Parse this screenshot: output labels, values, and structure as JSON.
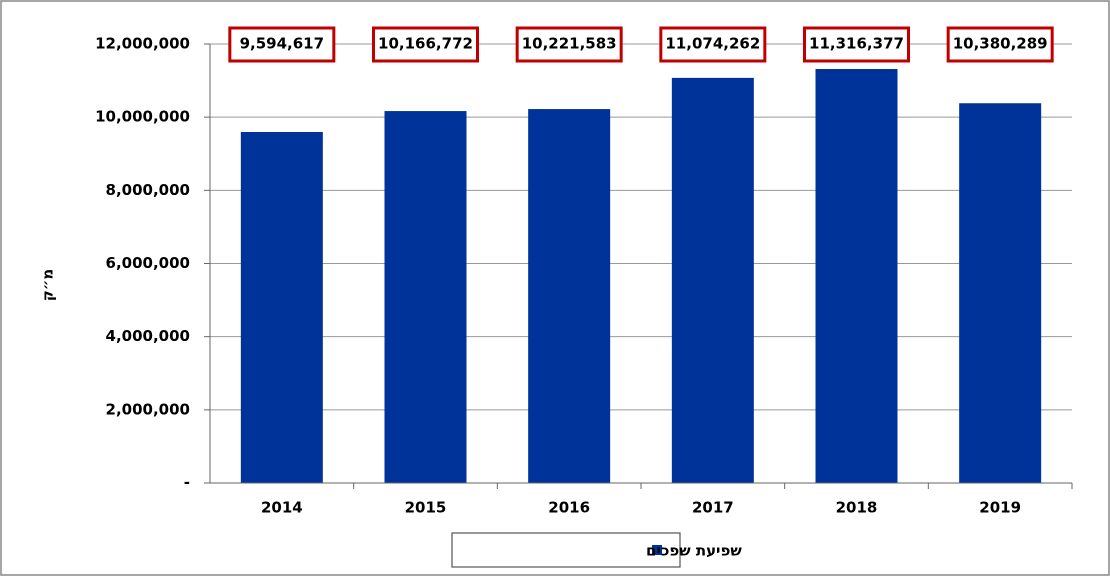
{
  "chart_data": {
    "type": "bar",
    "y_label": "מ״ק",
    "categories": [
      "2014",
      "2015",
      "2016",
      "2017",
      "2018",
      "2019"
    ],
    "series": [
      {
        "name": "שפיעת שפכים",
        "color": "#003399",
        "values": [
          9594617,
          10166772,
          10221583,
          11074262,
          11316377,
          10380289
        ],
        "value_labels": [
          "9,594,617",
          "10,166,772",
          "10,221,583",
          "11,074,262",
          "11,316,377",
          "10,380,289"
        ]
      }
    ],
    "ylim": [
      0,
      12000000
    ],
    "yticks": [
      {
        "value": 0,
        "label": "-"
      },
      {
        "value": 2000000,
        "label": "2,000,000"
      },
      {
        "value": 4000000,
        "label": "4,000,000"
      },
      {
        "value": 6000000,
        "label": "6,000,000"
      },
      {
        "value": 8000000,
        "label": "8,000,000"
      },
      {
        "value": 10000000,
        "label": "10,000,000"
      },
      {
        "value": 12000000,
        "label": "12,000,000"
      }
    ],
    "grid": true,
    "legend": "bottom",
    "value_label_color": "#c00000"
  }
}
